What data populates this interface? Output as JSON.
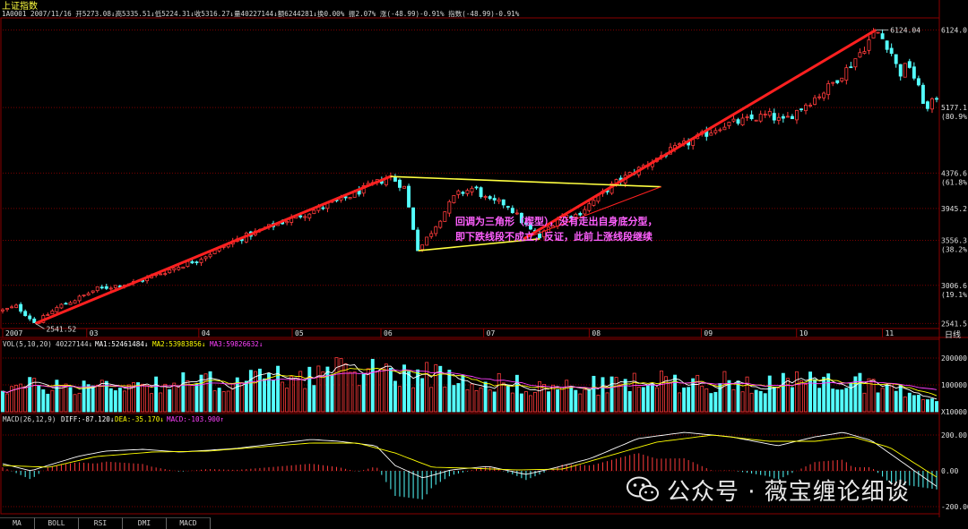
{
  "header": {
    "name": "上证指数",
    "info": "1A0001 2007/11/16 开5273.08↓高5335.51↓低5224.31↓收5316.27↓量40227144↓额6244281↓换0.00% 振2.07% 涨(-48.99)-0.91% 指数(-48.99)-0.91%"
  },
  "vol_header": {
    "label": "VOL(5,10,20)",
    "value": "40227144↓",
    "ma1": "MA1:52461484↓",
    "ma2": "MA2:53983856↓",
    "ma3": "MA3:59826632↓"
  },
  "macd_header": {
    "label": "MACD(26,12,9)",
    "diff": "DIFF:-87.120↓",
    "dea": "DEA:-35.170↓",
    "macd": "MACD:-103.900↑"
  },
  "annotation": {
    "line1": "回调为三角形（楔型），没有走出自身底分型，",
    "line2": "即下跌线段不成立，反证，此前上涨线段继续"
  },
  "labels": {
    "high": "6124.04",
    "low": "2541.52",
    "daily": "日线"
  },
  "tabs": [
    "MA",
    "BOLL",
    "RSI",
    "DMI",
    "MACD"
  ],
  "watermark": "公众号 · 薇宝缠论细谈",
  "colors": {
    "up": "#ff3b3b",
    "down": "#54ffff",
    "trend": "#ff2020",
    "triangle": "#ffff40",
    "annotation": "#ff60ff",
    "grid": "#7a0000",
    "ma1": "#ffffff",
    "ma2": "#ffff00",
    "ma3": "#ff40ff"
  },
  "chart_data": [
    {
      "type": "candlestick",
      "title": "上证指数",
      "x_labels": [
        "2007",
        "03",
        "04",
        "05",
        "06",
        "07",
        "08",
        "09",
        "10",
        "11"
      ],
      "y_ticks": [
        {
          "value": 6124.0,
          "label": "6124.0"
        },
        {
          "value": 5177.1,
          "label": "5177.1",
          "sub": "(80.9%)"
        },
        {
          "value": 4376.6,
          "label": "4376.6",
          "sub": "(61.8%)"
        },
        {
          "value": 3945.2,
          "label": "3945.2"
        },
        {
          "value": 3556.3,
          "label": "3556.3",
          "sub": "(38.2%)"
        },
        {
          "value": 3006.6,
          "label": "3006.6",
          "sub": "(19.1%)"
        },
        {
          "value": 2541.5,
          "label": "2541.5"
        }
      ],
      "ylim": [
        2480,
        6260
      ],
      "high": 6124.04,
      "low": 2541.52,
      "trend_lines": [
        {
          "name": "uptrend-1",
          "from": [
            0.035,
            2541.5
          ],
          "to": [
            0.415,
            4335
          ]
        },
        {
          "name": "uptrend-2",
          "from": [
            0.558,
            3575
          ],
          "to": [
            0.935,
            6124
          ]
        }
      ],
      "triangle_lines": [
        {
          "name": "upper",
          "from": [
            0.415,
            4335
          ],
          "to": [
            0.705,
            4210
          ]
        },
        {
          "name": "lower",
          "from": [
            0.445,
            3430
          ],
          "to": [
            0.575,
            3575
          ]
        }
      ],
      "path_anchors": [
        [
          0.0,
          2700
        ],
        [
          0.015,
          2750
        ],
        [
          0.03,
          2600
        ],
        [
          0.035,
          2541.5
        ],
        [
          0.06,
          2750
        ],
        [
          0.085,
          2870
        ],
        [
          0.1,
          2960
        ],
        [
          0.115,
          2990
        ],
        [
          0.14,
          3040
        ],
        [
          0.175,
          3180
        ],
        [
          0.21,
          3330
        ],
        [
          0.25,
          3560
        ],
        [
          0.29,
          3740
        ],
        [
          0.335,
          3930
        ],
        [
          0.365,
          4060
        ],
        [
          0.395,
          4230
        ],
        [
          0.415,
          4335
        ],
        [
          0.43,
          4200
        ],
        [
          0.445,
          3430
        ],
        [
          0.46,
          3680
        ],
        [
          0.485,
          4110
        ],
        [
          0.505,
          4200
        ],
        [
          0.52,
          4030
        ],
        [
          0.54,
          4000
        ],
        [
          0.555,
          3800
        ],
        [
          0.565,
          3680
        ],
        [
          0.575,
          3590
        ],
        [
          0.595,
          3840
        ],
        [
          0.615,
          3870
        ],
        [
          0.635,
          4060
        ],
        [
          0.655,
          4250
        ],
        [
          0.68,
          4420
        ],
        [
          0.705,
          4590
        ],
        [
          0.74,
          4780
        ],
        [
          0.77,
          4960
        ],
        [
          0.8,
          5030
        ],
        [
          0.82,
          5090
        ],
        [
          0.835,
          5000
        ],
        [
          0.855,
          5180
        ],
        [
          0.88,
          5380
        ],
        [
          0.905,
          5660
        ],
        [
          0.925,
          5950
        ],
        [
          0.935,
          6124
        ],
        [
          0.95,
          5900
        ],
        [
          0.96,
          5580
        ],
        [
          0.97,
          5720
        ],
        [
          0.98,
          5420
        ],
        [
          0.99,
          5140
        ],
        [
          1.0,
          5316
        ]
      ]
    },
    {
      "type": "bar",
      "title": "VOL(5,10,20)",
      "y_ticks": [
        {
          "value": 200000,
          "label": "200000"
        },
        {
          "value": 100000,
          "label": "100000"
        },
        {
          "value": 0,
          "label": "X10000"
        }
      ],
      "ylim": [
        0,
        230000
      ],
      "level_anchors": [
        [
          0.0,
          95000
        ],
        [
          0.1,
          100000
        ],
        [
          0.25,
          118000
        ],
        [
          0.32,
          140000
        ],
        [
          0.4,
          160000
        ],
        [
          0.45,
          145000
        ],
        [
          0.52,
          115000
        ],
        [
          0.58,
          90000
        ],
        [
          0.62,
          95000
        ],
        [
          0.7,
          115000
        ],
        [
          0.8,
          112000
        ],
        [
          0.88,
          110000
        ],
        [
          0.93,
          115000
        ],
        [
          0.97,
          70000
        ],
        [
          1.0,
          60000
        ]
      ]
    },
    {
      "type": "line",
      "title": "MACD(26,12,9)",
      "y_ticks": [
        {
          "value": 200,
          "label": "200.00"
        },
        {
          "value": 0,
          "label": "0.00"
        },
        {
          "value": -200,
          "label": "-200.00"
        }
      ],
      "ylim": [
        -240,
        260
      ],
      "diff_anchors": [
        [
          0.0,
          40
        ],
        [
          0.03,
          0
        ],
        [
          0.08,
          80
        ],
        [
          0.11,
          110
        ],
        [
          0.15,
          120
        ],
        [
          0.19,
          105
        ],
        [
          0.25,
          125
        ],
        [
          0.29,
          150
        ],
        [
          0.33,
          175
        ],
        [
          0.36,
          165
        ],
        [
          0.4,
          140
        ],
        [
          0.42,
          30
        ],
        [
          0.45,
          -40
        ],
        [
          0.48,
          5
        ],
        [
          0.52,
          25
        ],
        [
          0.56,
          -20
        ],
        [
          0.59,
          15
        ],
        [
          0.63,
          70
        ],
        [
          0.68,
          180
        ],
        [
          0.73,
          215
        ],
        [
          0.78,
          190
        ],
        [
          0.83,
          140
        ],
        [
          0.87,
          190
        ],
        [
          0.9,
          215
        ],
        [
          0.93,
          170
        ],
        [
          0.96,
          60
        ],
        [
          1.0,
          -87.12
        ]
      ],
      "dea_anchors": [
        [
          0.0,
          30
        ],
        [
          0.05,
          20
        ],
        [
          0.1,
          80
        ],
        [
          0.16,
          105
        ],
        [
          0.22,
          110
        ],
        [
          0.28,
          135
        ],
        [
          0.33,
          155
        ],
        [
          0.38,
          155
        ],
        [
          0.42,
          100
        ],
        [
          0.46,
          20
        ],
        [
          0.5,
          15
        ],
        [
          0.55,
          5
        ],
        [
          0.6,
          10
        ],
        [
          0.65,
          85
        ],
        [
          0.7,
          160
        ],
        [
          0.76,
          200
        ],
        [
          0.82,
          165
        ],
        [
          0.87,
          165
        ],
        [
          0.91,
          190
        ],
        [
          0.95,
          130
        ],
        [
          1.0,
          -35.17
        ]
      ]
    }
  ]
}
